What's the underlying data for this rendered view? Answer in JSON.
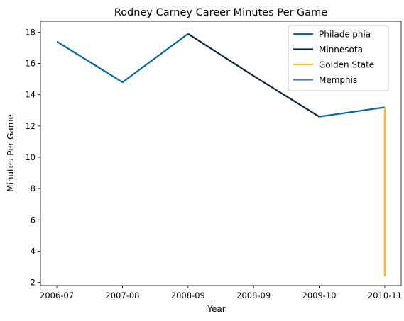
{
  "chart_data": {
    "type": "line",
    "title": "Rodney Carney Career Minutes Per Game",
    "xlabel": "Year",
    "ylabel": "Minutes Per Game",
    "x_tick_labels": [
      "2006-07",
      "2007-08",
      "2008-09",
      "2008-09",
      "2009-10",
      "2010-11"
    ],
    "xlim": [
      -0.25,
      5.25
    ],
    "ylim": [
      1.8,
      18.7
    ],
    "y_ticks": [
      2,
      4,
      6,
      8,
      10,
      12,
      14,
      16,
      18
    ],
    "grid": false,
    "legend_position": "top-right",
    "series": [
      {
        "name": "Philadelphia",
        "color": "#0066b2",
        "x": [
          0,
          1,
          2
        ],
        "y": [
          17.4,
          14.8,
          17.9
        ]
      },
      {
        "name": "Minnesota",
        "color": "#0c2340",
        "x": [
          2,
          3,
          4
        ],
        "y": [
          17.9,
          15.2,
          12.6
        ]
      },
      {
        "name": "Philadelphia",
        "color": "#0066b2",
        "x": [
          4,
          5
        ],
        "y": [
          12.6,
          13.2
        ],
        "in_legend": false
      },
      {
        "name": "Golden State",
        "color": "#ffb42d",
        "x": [
          5,
          5
        ],
        "y": [
          13.2,
          2.4
        ]
      },
      {
        "name": "Memphis",
        "color": "#5d76a9",
        "x": [],
        "y": []
      }
    ]
  }
}
